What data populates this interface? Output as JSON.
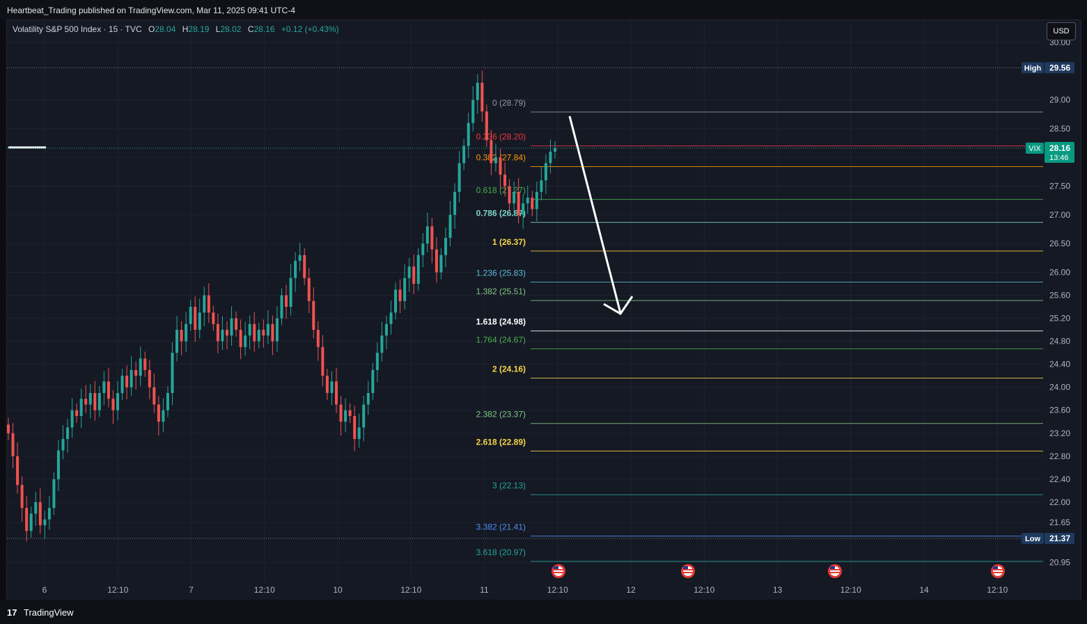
{
  "header": {
    "publisher_text": "Heartbeat_Trading published on TradingView.com, Mar 11, 2025 09:41 UTC-4"
  },
  "legend": {
    "symbol": "Volatility S&P 500 Index · 15 · TVC",
    "open_label": "O",
    "open": "28.04",
    "high_label": "H",
    "high": "28.19",
    "low_label": "L",
    "low": "28.02",
    "close_label": "C",
    "close": "28.16",
    "change": "+0.12 (+0.43%)"
  },
  "toolbar": {
    "currency": "USD"
  },
  "footer": {
    "brand": "TradingView",
    "logo_glyph": "17"
  },
  "colors": {
    "bg": "#151924",
    "up": "#26a69a",
    "down": "#ef5350",
    "grid": "#1f2330"
  },
  "chart_data": {
    "type": "candlestick",
    "title": "Volatility S&P 500 Index · 15 · TVC",
    "y_axis": {
      "ticks": [
        "30.00",
        "29.00",
        "28.50",
        "28.00",
        "27.50",
        "27.00",
        "26.50",
        "26.00",
        "25.60",
        "25.20",
        "24.80",
        "24.40",
        "24.00",
        "23.60",
        "23.20",
        "22.80",
        "22.40",
        "22.00",
        "21.65",
        "20.95"
      ],
      "tick_values": [
        30.0,
        29.0,
        28.5,
        28.0,
        27.5,
        27.0,
        26.5,
        26.0,
        25.6,
        25.2,
        24.8,
        24.4,
        24.0,
        23.6,
        23.2,
        22.8,
        22.4,
        22.0,
        21.65,
        20.95
      ]
    },
    "x_axis": {
      "ticks": [
        "6",
        "12:10",
        "7",
        "12:10",
        "10",
        "12:10",
        "11",
        "12:10",
        "12",
        "12:10",
        "13",
        "12:10",
        "14",
        "12:10"
      ],
      "tick_positions": [
        0,
        0.5,
        1,
        1.5,
        2,
        2.5,
        3,
        3.5,
        4,
        4.5,
        5,
        5.5,
        6,
        6.5
      ]
    },
    "price_badges": {
      "high": {
        "label": "High",
        "value": "29.56",
        "price": 29.56
      },
      "low": {
        "label": "Low",
        "value": "21.37",
        "price": 21.37
      },
      "last": {
        "label": "VIX",
        "value": "28.16",
        "countdown": "13:46",
        "price": 28.16
      }
    },
    "fib_levels": [
      {
        "ratio": "0",
        "price": 28.79,
        "text": "0 (28.79)",
        "color": "#9598a1"
      },
      {
        "ratio": "0.236",
        "price": 28.2,
        "text": "0.236 (28.20)",
        "color": "#f23645"
      },
      {
        "ratio": "0.382",
        "price": 27.84,
        "text": "0.382 (27.84)",
        "color": "#ff9800"
      },
      {
        "ratio": "0.618",
        "price": 27.27,
        "text": "0.618 (27.27)",
        "color": "#4caf50"
      },
      {
        "ratio": "0.786",
        "price": 26.87,
        "text": "0.786 (26.87)",
        "color": "#81d4c8"
      },
      {
        "ratio": "1",
        "price": 26.37,
        "text": "1 (26.37)",
        "color": "#f5d547"
      },
      {
        "ratio": "1.236",
        "price": 25.83,
        "text": "1.236 (25.83)",
        "color": "#5bb8d9"
      },
      {
        "ratio": "1.382",
        "price": 25.51,
        "text": "1.382 (25.51)",
        "color": "#81c784"
      },
      {
        "ratio": "1.618",
        "price": 24.98,
        "text": "1.618 (24.98)",
        "color": "#ffffff"
      },
      {
        "ratio": "1.764",
        "price": 24.67,
        "text": "1.764 (24.67)",
        "color": "#4caf50"
      },
      {
        "ratio": "2",
        "price": 24.16,
        "text": "2 (24.16)",
        "color": "#f5d547"
      },
      {
        "ratio": "2.382",
        "price": 23.37,
        "text": "2.382 (23.37)",
        "color": "#81c784"
      },
      {
        "ratio": "2.618",
        "price": 22.89,
        "text": "2.618 (22.89)",
        "color": "#f5d547"
      },
      {
        "ratio": "3",
        "price": 22.13,
        "text": "3 (22.13)",
        "color": "#26a69a"
      },
      {
        "ratio": "3.382",
        "price": 21.41,
        "text": "3.382 (21.41)",
        "color": "#4d8ef0"
      },
      {
        "ratio": "3.618",
        "price": 20.97,
        "text": "3.618 (20.97)",
        "color": "#26a69a"
      }
    ],
    "candles_close": [
      23.2,
      22.8,
      22.3,
      21.9,
      21.5,
      21.8,
      22.0,
      21.6,
      21.7,
      21.9,
      22.4,
      22.9,
      23.1,
      23.3,
      23.6,
      23.5,
      23.8,
      23.7,
      23.9,
      23.6,
      23.9,
      24.1,
      23.8,
      23.6,
      23.9,
      24.2,
      24.0,
      24.3,
      24.2,
      24.5,
      24.3,
      24.0,
      23.7,
      23.4,
      23.6,
      23.9,
      24.6,
      25.0,
      24.8,
      25.1,
      25.4,
      25.0,
      25.3,
      25.6,
      25.3,
      25.1,
      24.8,
      25.0,
      24.9,
      25.2,
      25.0,
      24.7,
      24.9,
      25.1,
      24.8,
      25.0,
      24.9,
      25.1,
      24.8,
      25.2,
      25.6,
      25.4,
      25.9,
      26.2,
      26.3,
      25.9,
      25.5,
      25.0,
      24.7,
      24.2,
      23.9,
      24.1,
      23.7,
      23.4,
      23.6,
      23.5,
      23.1,
      23.3,
      23.7,
      23.9,
      24.3,
      24.6,
      24.9,
      25.1,
      25.3,
      25.7,
      25.5,
      25.9,
      26.1,
      25.8,
      26.3,
      26.5,
      26.8,
      26.4,
      26.0,
      26.3,
      26.6,
      27.0,
      27.4,
      27.9,
      28.2,
      28.6,
      29.0,
      29.3,
      28.8,
      28.3,
      27.9,
      28.0,
      27.7,
      27.5,
      27.2,
      27.4,
      27.0,
      27.2,
      27.3,
      27.1,
      27.4,
      27.6,
      27.9,
      28.1,
      28.16
    ]
  }
}
